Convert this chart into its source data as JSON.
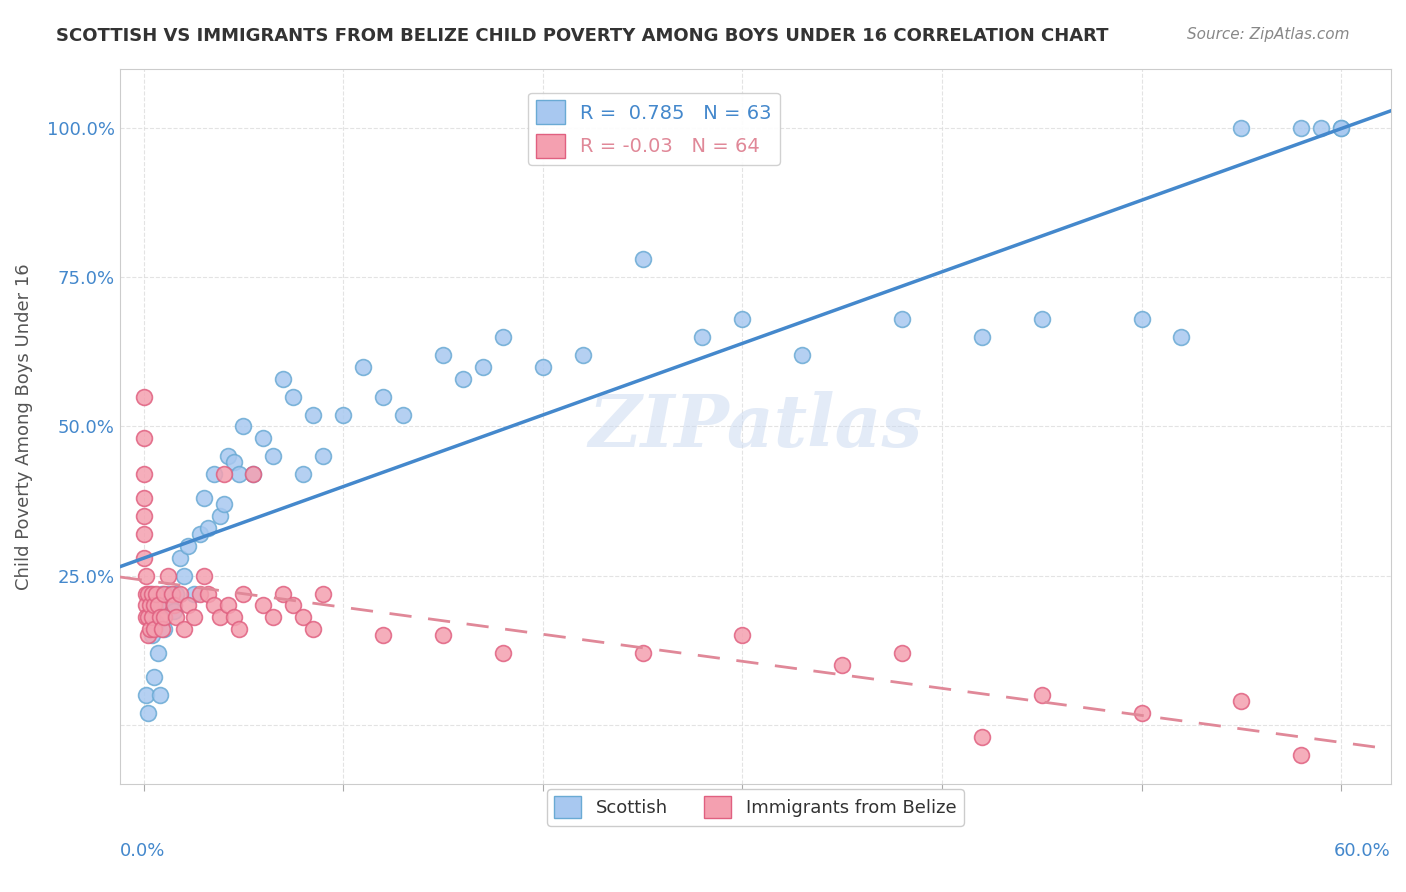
{
  "title": "SCOTTISH VS IMMIGRANTS FROM BELIZE CHILD POVERTY AMONG BOYS UNDER 16 CORRELATION CHART",
  "source": "Source: ZipAtlas.com",
  "ylabel": "Child Poverty Among Boys Under 16",
  "yticks": [
    0.0,
    0.25,
    0.5,
    0.75,
    1.0
  ],
  "ytick_labels": [
    "",
    "25.0%",
    "50.0%",
    "75.0%",
    "100.0%"
  ],
  "xticks": [
    0.0,
    0.1,
    0.2,
    0.3,
    0.4,
    0.5,
    0.6
  ],
  "xlim": [
    -0.012,
    0.625
  ],
  "ylim": [
    -0.1,
    1.1
  ],
  "scottish_R": 0.785,
  "scottish_N": 63,
  "belize_R": -0.03,
  "belize_N": 64,
  "scottish_color": "#a8c8f0",
  "scottish_edge": "#6aaad4",
  "belize_color": "#f4a0b0",
  "belize_edge": "#e06080",
  "scottish_line_color": "#4488cc",
  "belize_line_color": "#e08898",
  "background_color": "#ffffff",
  "grid_color": "#dddddd",
  "title_color": "#333333",
  "axis_label_color": "#4488cc",
  "watermark": "ZIPatlas",
  "scottish_x": [
    0.001,
    0.002,
    0.003,
    0.003,
    0.004,
    0.005,
    0.005,
    0.006,
    0.007,
    0.008,
    0.009,
    0.01,
    0.01,
    0.012,
    0.013,
    0.015,
    0.016,
    0.018,
    0.02,
    0.022,
    0.025,
    0.028,
    0.03,
    0.032,
    0.035,
    0.038,
    0.04,
    0.042,
    0.045,
    0.048,
    0.05,
    0.055,
    0.06,
    0.065,
    0.07,
    0.075,
    0.08,
    0.085,
    0.09,
    0.1,
    0.11,
    0.12,
    0.13,
    0.15,
    0.16,
    0.17,
    0.18,
    0.2,
    0.22,
    0.25,
    0.28,
    0.3,
    0.33,
    0.38,
    0.42,
    0.45,
    0.5,
    0.52,
    0.55,
    0.58,
    0.59,
    0.6,
    0.6
  ],
  "scottish_y": [
    0.05,
    0.02,
    0.18,
    0.22,
    0.15,
    0.08,
    0.2,
    0.17,
    0.12,
    0.05,
    0.22,
    0.2,
    0.16,
    0.22,
    0.2,
    0.19,
    0.22,
    0.28,
    0.25,
    0.3,
    0.22,
    0.32,
    0.38,
    0.33,
    0.42,
    0.35,
    0.37,
    0.45,
    0.44,
    0.42,
    0.5,
    0.42,
    0.48,
    0.45,
    0.58,
    0.55,
    0.42,
    0.52,
    0.45,
    0.52,
    0.6,
    0.55,
    0.52,
    0.62,
    0.58,
    0.6,
    0.65,
    0.6,
    0.62,
    0.78,
    0.65,
    0.68,
    0.62,
    0.68,
    0.65,
    0.68,
    0.68,
    0.65,
    1.0,
    1.0,
    1.0,
    1.0,
    1.0
  ],
  "belize_x": [
    0.0,
    0.0,
    0.0,
    0.0,
    0.0,
    0.0,
    0.0,
    0.001,
    0.001,
    0.001,
    0.001,
    0.002,
    0.002,
    0.002,
    0.003,
    0.003,
    0.004,
    0.004,
    0.005,
    0.005,
    0.006,
    0.007,
    0.008,
    0.009,
    0.01,
    0.01,
    0.012,
    0.014,
    0.015,
    0.016,
    0.018,
    0.02,
    0.022,
    0.025,
    0.028,
    0.03,
    0.032,
    0.035,
    0.038,
    0.04,
    0.042,
    0.045,
    0.048,
    0.05,
    0.055,
    0.06,
    0.065,
    0.07,
    0.075,
    0.08,
    0.085,
    0.09,
    0.12,
    0.15,
    0.18,
    0.25,
    0.3,
    0.35,
    0.38,
    0.42,
    0.45,
    0.5,
    0.55,
    0.58
  ],
  "belize_y": [
    0.55,
    0.48,
    0.42,
    0.38,
    0.35,
    0.32,
    0.28,
    0.25,
    0.22,
    0.2,
    0.18,
    0.22,
    0.18,
    0.15,
    0.2,
    0.16,
    0.22,
    0.18,
    0.2,
    0.16,
    0.22,
    0.2,
    0.18,
    0.16,
    0.22,
    0.18,
    0.25,
    0.22,
    0.2,
    0.18,
    0.22,
    0.16,
    0.2,
    0.18,
    0.22,
    0.25,
    0.22,
    0.2,
    0.18,
    0.42,
    0.2,
    0.18,
    0.16,
    0.22,
    0.42,
    0.2,
    0.18,
    0.22,
    0.2,
    0.18,
    0.16,
    0.22,
    0.15,
    0.15,
    0.12,
    0.12,
    0.15,
    0.1,
    0.12,
    -0.02,
    0.05,
    0.02,
    0.04,
    -0.05
  ]
}
